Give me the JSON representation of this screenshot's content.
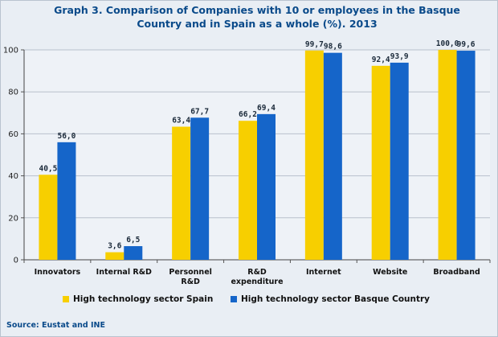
{
  "chart_data": {
    "type": "bar",
    "title_line1": "Graph 3. Comparison of Companies with 10 or employees in the Basque",
    "title_line2": "Country and in Spain as a whole (%). 2013",
    "categories": [
      [
        "Innovators"
      ],
      [
        "Internal R&D"
      ],
      [
        "Personnel",
        "R&D"
      ],
      [
        "R&D",
        "expenditure"
      ],
      [
        "Internet"
      ],
      [
        "Website"
      ],
      [
        "Broadband"
      ]
    ],
    "series": [
      {
        "name": "High technology sector Spain",
        "color": "#f7cf00",
        "values": [
          40.5,
          3.6,
          63.4,
          66.2,
          99.7,
          92.4,
          100.0
        ],
        "labels": [
          "40,5",
          "3,6",
          "63,4",
          "66,2",
          "99,7",
          "92,4",
          "100,0"
        ]
      },
      {
        "name": "High technology sector Basque Country",
        "color": "#1565c9",
        "values": [
          56.0,
          6.5,
          67.7,
          69.4,
          98.6,
          93.9,
          99.6
        ],
        "labels": [
          "56,0",
          "6,5",
          "67,7",
          "69,4",
          "98,6",
          "93,9",
          "99,6"
        ]
      }
    ],
    "ylim": [
      0,
      100
    ],
    "yticks": [
      0,
      20,
      40,
      60,
      80,
      100
    ],
    "grid": true,
    "legend": "bottom"
  },
  "source": "Source: Eustat and INE"
}
